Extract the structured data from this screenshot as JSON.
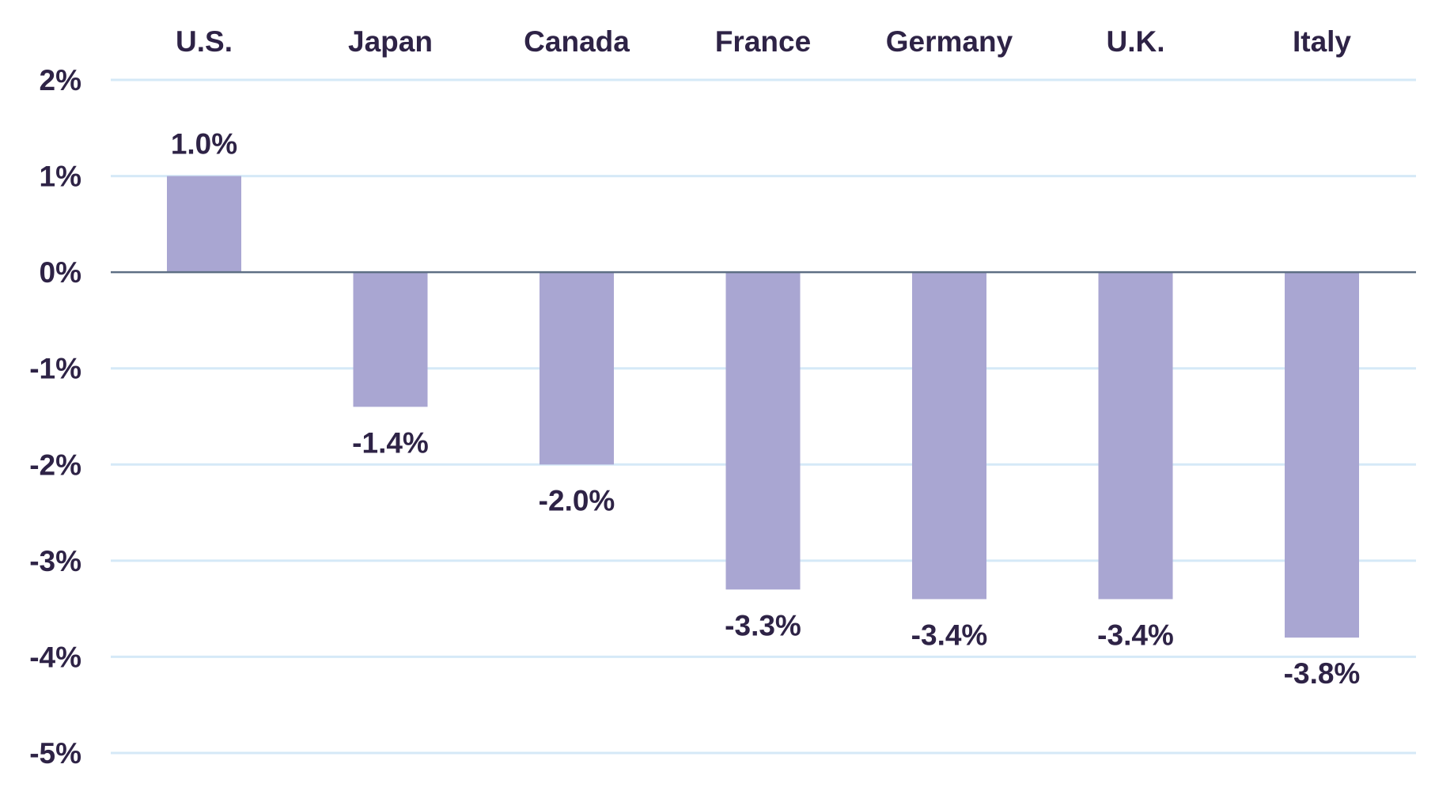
{
  "chart_data": {
    "type": "bar",
    "categories": [
      "U.S.",
      "Japan",
      "Canada",
      "France",
      "Germany",
      "U.K.",
      "Italy"
    ],
    "values": [
      1.0,
      -1.4,
      -2.0,
      -3.3,
      -3.4,
      -3.4,
      -3.8
    ],
    "value_labels": [
      "1.0%",
      "-1.4%",
      "-2.0%",
      "-3.3%",
      "-3.4%",
      "-3.4%",
      "-3.8%"
    ],
    "ylim": [
      -5,
      2
    ],
    "yticks": [
      2,
      1,
      0,
      -1,
      -2,
      -3,
      -4,
      -5
    ],
    "ytick_labels": [
      "2%",
      "1%",
      "0%",
      "-1%",
      "-2%",
      "-3%",
      "-4%",
      "-5%"
    ],
    "category_axis_position": "top",
    "grid": true,
    "title": "",
    "xlabel": "",
    "ylabel": ""
  },
  "colors": {
    "bar": "#a9a6d2",
    "text": "#2e2346",
    "grid": "#d5e9f7",
    "zero_line": "#5e6f84"
  }
}
